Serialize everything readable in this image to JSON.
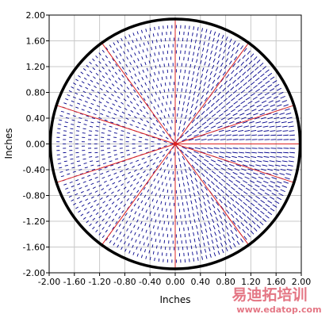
{
  "chart_data": {
    "type": "scatter",
    "title": "",
    "xlabel": "Inches",
    "ylabel": "Inches",
    "xlim": [
      -2.0,
      2.0
    ],
    "ylim": [
      -2.0,
      2.0
    ],
    "xticks": [
      "-2.00",
      "-1.60",
      "-1.20",
      "-0.80",
      "-0.40",
      "0.00",
      "0.40",
      "0.80",
      "1.20",
      "1.60",
      "2.00"
    ],
    "yticks": [
      "2.00",
      "1.60",
      "1.20",
      "0.80",
      "0.40",
      "0.00",
      "-0.40",
      "-0.80",
      "-1.20",
      "-1.60",
      "-2.00"
    ],
    "grid": true,
    "boundary_circle": {
      "center": [
        0.0,
        0.0
      ],
      "radius": 1.96,
      "color": "#000000"
    },
    "dash_pattern": {
      "color": "#00008b",
      "description": "short dashes filling the circle, arranged radially around the center",
      "ring_spacing": 0.1,
      "dense_direction": "+x"
    },
    "radial_lines": {
      "color": "#dd2222",
      "origin": [
        0.0,
        0.0
      ],
      "angles_deg": [
        0,
        18,
        54,
        90,
        126,
        162,
        198,
        234,
        270,
        306,
        342
      ]
    },
    "center_marker": {
      "x": 0.0,
      "y": 0.0,
      "color": "#dd2222"
    }
  },
  "watermark": {
    "brand": "易迪拓培训",
    "url": "www.edatop.com",
    "color": "#e06070"
  }
}
